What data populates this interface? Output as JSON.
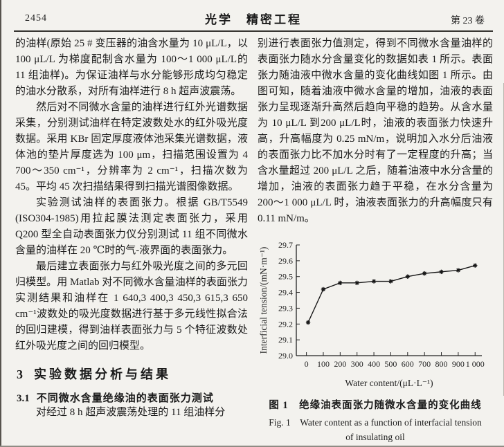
{
  "header": {
    "page_number": "2454",
    "journal_title": "光学　精密工程",
    "volume": "第 23 卷"
  },
  "left_column": {
    "paragraphs": [
      "的油样(原始 25 # 变压器的油含水量为 10 μL/L，以 100 μL/L 为梯度配制含水量为 100～1 000 μL/L的 11 组油样)。为保证油样与水分能够形成均匀稳定的油水分散系，对所有油样进行 8 h 超声波震荡。",
      "然后对不同微水含量的油样进行红外光谱数据采集，分别测试油样在特定波数处水的红外吸光度数据。采用 KBr 固定厚度液体池采集光谱数据，液体池的垫片厚度选为 100 μm，扫描范围设置为 4 700～350 cm⁻¹，分辨率为 2 cm⁻¹，扫描次数为 45。平均 45 次扫描结果得到扫描光谱图像数据。",
      "实验测试油样的表面张力。根据 GB/T5549 (ISO304-1985)用拉起膜法测定表面张力，采用 Q200 型全自动表面张力仪分别测试 11 组不同微水含量的油样在 20 ℃时的气-液界面的表面张力。",
      "最后建立表面张力与红外吸光度之间的多元回归模型。用 Matlab 对不同微水含量油样的表面张力实测结果和油样在 1 640,3 400,3 450,3 615,3 650 cm⁻¹波数处的吸光度数据进行基于多元线性拟合法的回归建模，得到油样表面张力与 5 个特征波数处红外吸光度之间的回归模型。"
    ],
    "section_heading": {
      "number": "3",
      "title": "实验数据分析与结果"
    },
    "subsection_heading": {
      "number": "3.1",
      "title": "不同微水含量绝缘油的表面张力测试"
    },
    "last_paragraph": "对经过 8 h 超声波震荡处理的 11 组油样分"
  },
  "right_column": {
    "paragraph": "别进行表面张力值测定，得到不同微水含量油样的表面张力随水分含量变化的数据如表 1 所示。表面张力随油液中微水含量的变化曲线如图 1 所示。由图可知，随着油液中微水含量的增加，油液的表面张力呈现逐渐升高然后趋向平稳的趋势。从含水量为 10 μL/L 到200 μL/L时，油液的表面张力快速升高，升高幅度为 0.25 mN/m，说明加入水分后油液的表面张力比不加水分时有了一定程度的升高；当含水量超过 200 μL/L 之后，随着油液中水分含量的增加，油液的表面张力趋于平稳，在水分含量为 200～1 000 μL/L 时，油液表面张力的升高幅度只有 0.11 mN/m。"
  },
  "figure": {
    "caption_zh": "图 1　绝缘油表面张力随微水含量的变化曲线",
    "caption_en_line1": "Fig. 1　Water content as a function of interfacial tension",
    "caption_en_line2": "of insulating oil"
  },
  "chart_data": {
    "type": "line",
    "title": "",
    "xlabel": "Water content/(μL·L⁻¹)",
    "ylabel": "Interficial tension/(mN·m⁻¹)",
    "x": [
      10,
      100,
      200,
      300,
      400,
      500,
      600,
      700,
      800,
      900,
      1000
    ],
    "y": [
      29.21,
      29.42,
      29.46,
      29.46,
      29.47,
      29.47,
      29.5,
      29.52,
      29.53,
      29.54,
      29.57
    ],
    "xlim": [
      -60,
      1040
    ],
    "ylim": [
      29.0,
      29.7
    ],
    "xticks": [
      0,
      100,
      200,
      300,
      400,
      500,
      600,
      700,
      800,
      900,
      1000
    ],
    "xtick_labels": [
      "0",
      "100",
      "200",
      "300",
      "400",
      "500",
      "600",
      "700",
      "800",
      "900",
      "1 000"
    ],
    "yticks": [
      29.0,
      29.1,
      29.2,
      29.3,
      29.4,
      29.5,
      29.6,
      29.7
    ],
    "ytick_labels": [
      "29.0",
      "29.1",
      "29.2",
      "29.3",
      "29.4",
      "29.5",
      "29.6",
      "29.7"
    ],
    "grid": false,
    "legend": "none",
    "marker": "asterisk",
    "line_color": "#161616",
    "axis_color": "#222222"
  }
}
